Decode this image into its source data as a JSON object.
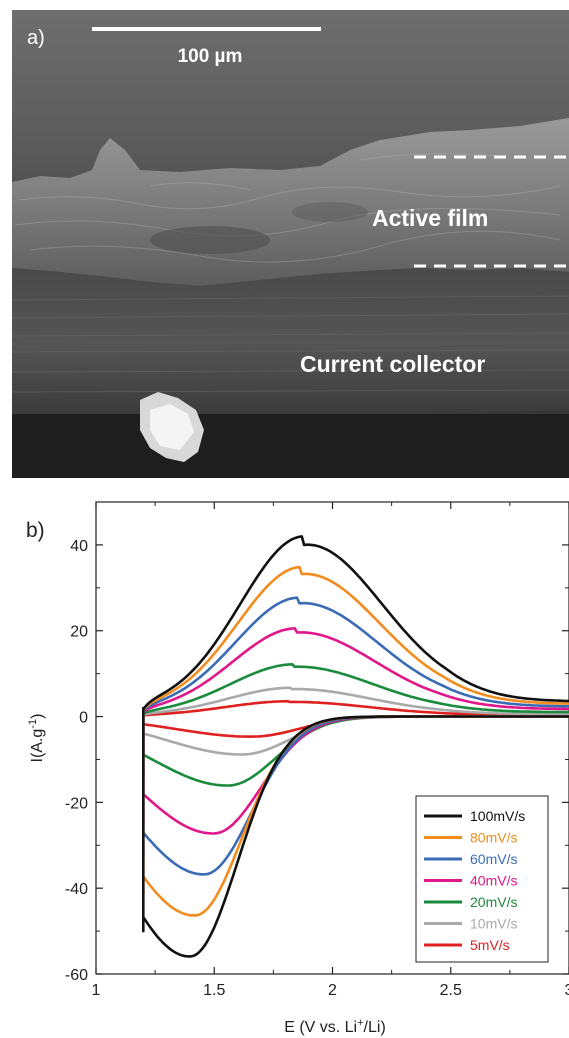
{
  "panel_a": {
    "label": "a)",
    "scale_bar": "100 µm",
    "annotation_active_film": "Active film",
    "annotation_current_collector": "Current collector"
  },
  "panel_b": {
    "label": "b)"
  },
  "chart_data": {
    "type": "line",
    "xlabel": "E (V vs. Li+/Li)",
    "ylabel": "I(A.g-1)",
    "xlim": [
      1,
      3
    ],
    "ylim": [
      -60,
      50
    ],
    "xticks": [
      "1",
      "1.5",
      "2",
      "2.5",
      "3"
    ],
    "yticks": [
      "-60",
      "-40",
      "-20",
      "0",
      "20",
      "40"
    ],
    "legend_placement": "bottom-right",
    "series": [
      {
        "name": "100mV/s",
        "color": "#111111",
        "scale": 1.0,
        "peak_x": 1.88,
        "valley_x": 1.4
      },
      {
        "name": "80mV/s",
        "color": "#f28c1e",
        "scale": 0.83,
        "peak_x": 1.87,
        "valley_x": 1.42
      },
      {
        "name": "60mV/s",
        "color": "#3b6bb5",
        "scale": 0.66,
        "peak_x": 1.86,
        "valley_x": 1.46
      },
      {
        "name": "40mV/s",
        "color": "#e0168a",
        "scale": 0.49,
        "peak_x": 1.85,
        "valley_x": 1.5
      },
      {
        "name": "20mV/s",
        "color": "#1a8a3c",
        "scale": 0.29,
        "peak_x": 1.84,
        "valley_x": 1.56
      },
      {
        "name": "10mV/s",
        "color": "#a9a9a9",
        "scale": 0.16,
        "peak_x": 1.83,
        "valley_x": 1.62
      },
      {
        "name": "5mV/s",
        "color": "#e02020",
        "scale": 0.085,
        "peak_x": 1.82,
        "valley_x": 1.66
      }
    ]
  }
}
